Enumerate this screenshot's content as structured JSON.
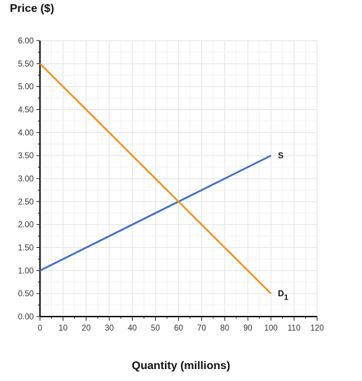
{
  "chart_data": {
    "type": "line",
    "title": "",
    "xlabel": "Quantity (millions)",
    "ylabel": "Price ($)",
    "xlim": [
      0,
      120
    ],
    "ylim": [
      0,
      6
    ],
    "x_ticks": [
      "0",
      "10",
      "20",
      "30",
      "40",
      "50",
      "60",
      "70",
      "80",
      "90",
      "100",
      "110",
      "120"
    ],
    "y_ticks": [
      "0.00",
      "0.50",
      "1.00",
      "1.50",
      "2.00",
      "2.50",
      "3.00",
      "3.50",
      "4.00",
      "4.50",
      "5.00",
      "5.50",
      "6.00"
    ],
    "grid": true,
    "series": [
      {
        "label_main": "S",
        "label_sub": "",
        "color": "#3a6fc0",
        "x": [
          0,
          100
        ],
        "y": [
          1.0,
          3.5
        ]
      },
      {
        "label_main": "D",
        "label_sub": "1",
        "color": "#f0901e",
        "x": [
          0,
          100
        ],
        "y": [
          5.5,
          0.5
        ]
      }
    ]
  }
}
